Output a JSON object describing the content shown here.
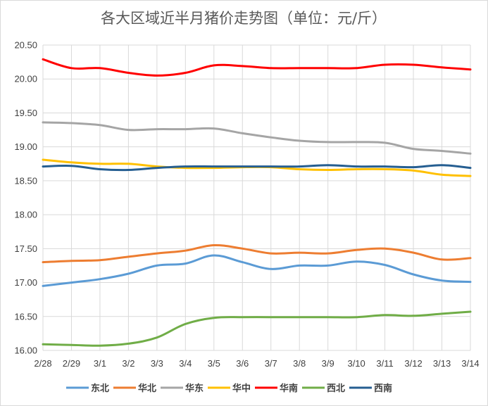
{
  "chart_data": {
    "type": "line",
    "title": "各大区域近半月猪价走势图（单位：元/斤）",
    "categories": [
      "2/28",
      "2/29",
      "3/1",
      "3/2",
      "3/3",
      "3/4",
      "3/5",
      "3/6",
      "3/7",
      "3/8",
      "3/9",
      "3/10",
      "3/11",
      "3/12",
      "3/13",
      "3/14"
    ],
    "y_ticks": [
      "16.00",
      "16.50",
      "17.00",
      "17.50",
      "18.00",
      "18.50",
      "19.00",
      "19.50",
      "20.00",
      "20.50"
    ],
    "ylim": [
      16.0,
      20.5
    ],
    "grid": true,
    "legend_position": "bottom",
    "series": [
      {
        "name": "东北",
        "color": "#5b9bd5",
        "values": [
          16.95,
          17.0,
          17.05,
          17.13,
          17.25,
          17.28,
          17.4,
          17.3,
          17.2,
          17.25,
          17.25,
          17.31,
          17.26,
          17.12,
          17.03,
          17.01
        ]
      },
      {
        "name": "华北",
        "color": "#ed7d31",
        "values": [
          17.3,
          17.32,
          17.33,
          17.38,
          17.43,
          17.47,
          17.55,
          17.5,
          17.43,
          17.44,
          17.43,
          17.48,
          17.5,
          17.44,
          17.34,
          17.36
        ]
      },
      {
        "name": "华东",
        "color": "#a5a5a5",
        "values": [
          19.36,
          19.35,
          19.32,
          19.25,
          19.26,
          19.26,
          19.27,
          19.2,
          19.14,
          19.09,
          19.07,
          19.07,
          19.06,
          18.97,
          18.94,
          18.9
        ]
      },
      {
        "name": "华中",
        "color": "#ffc000",
        "values": [
          18.81,
          18.77,
          18.75,
          18.75,
          18.71,
          18.69,
          18.69,
          18.7,
          18.7,
          18.67,
          18.66,
          18.67,
          18.67,
          18.65,
          18.59,
          18.57
        ]
      },
      {
        "name": "华南",
        "color": "#ff0000",
        "values": [
          20.29,
          20.16,
          20.16,
          20.09,
          20.05,
          20.09,
          20.2,
          20.19,
          20.16,
          20.16,
          20.16,
          20.16,
          20.21,
          20.21,
          20.17,
          20.14
        ]
      },
      {
        "name": "西北",
        "color": "#70ad47",
        "values": [
          16.09,
          16.08,
          16.07,
          16.1,
          16.19,
          16.39,
          16.48,
          16.49,
          16.49,
          16.49,
          16.49,
          16.49,
          16.52,
          16.51,
          16.54,
          16.57
        ]
      },
      {
        "name": "西南",
        "color": "#255e91",
        "values": [
          18.71,
          18.72,
          18.67,
          18.66,
          18.69,
          18.71,
          18.71,
          18.71,
          18.71,
          18.71,
          18.73,
          18.71,
          18.71,
          18.7,
          18.73,
          18.69
        ]
      }
    ]
  }
}
